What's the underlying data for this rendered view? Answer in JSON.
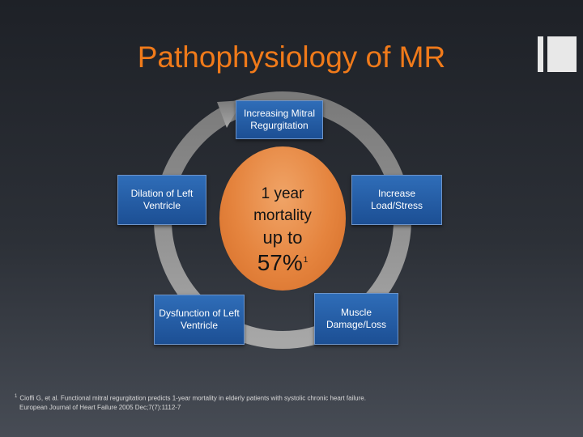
{
  "title": "Pathophysiology of MR",
  "center": {
    "line1": "1 year",
    "line2": "mortality",
    "line3": "up to",
    "value": "57%",
    "footnote_marker": "1"
  },
  "cycle_steps": [
    {
      "id": "top",
      "label": "Increasing Mitral Regurgitation"
    },
    {
      "id": "right",
      "label": "Increase Load/Stress"
    },
    {
      "id": "bottom-right",
      "label": "Muscle Damage/Loss"
    },
    {
      "id": "bottom-left",
      "label": "Dysfunction of Left Ventricle"
    },
    {
      "id": "left",
      "label": "Dilation of Left Ventricle"
    }
  ],
  "footnote": {
    "marker": "1",
    "line1": "Cioffi G, et al. Functional mitral regurgitation predicts 1-year mortality in elderly patients with systolic chronic heart failure.",
    "line2": "European Journal of Heart Failure 2005 Dec;7(7):1112-7"
  },
  "colors": {
    "title": "#f07a1a",
    "box_fill": "#2f6db8",
    "center_fill": "#e5843e",
    "ring": "#8c8c8c"
  }
}
